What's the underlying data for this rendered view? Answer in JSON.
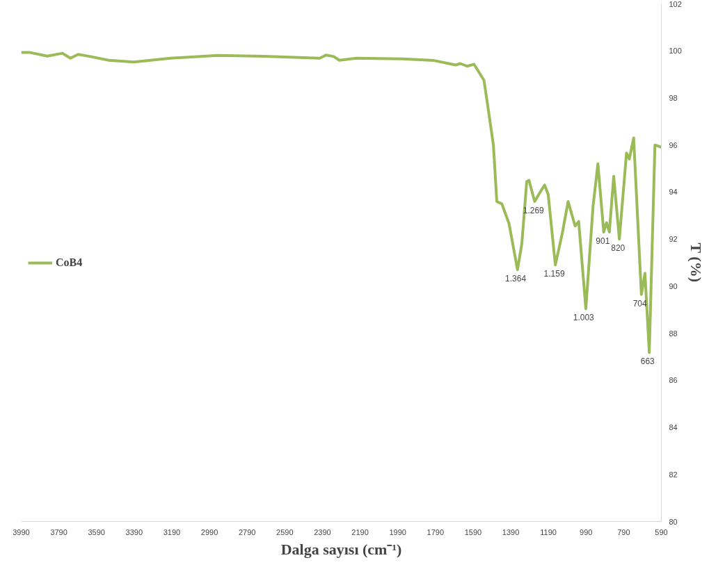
{
  "chart_data": {
    "type": "line",
    "xlabel": "Dalga sayısı (cm⁻¹)",
    "ylabel": "T (%)",
    "x": [
      3990,
      3942,
      3852,
      3771,
      3729,
      3687,
      3623,
      3525,
      3392,
      3196,
      2946,
      2700,
      2405,
      2371,
      2330,
      2300,
      2209,
      1963,
      1797,
      1683,
      1657,
      1622,
      1585,
      1532,
      1509,
      1482,
      1464,
      1437,
      1399,
      1354,
      1331,
      1305,
      1293,
      1263,
      1237,
      1210,
      1191,
      1153,
      1116,
      1085,
      1048,
      1029,
      991,
      953,
      927,
      896,
      881,
      866,
      843,
      813,
      775,
      760,
      737,
      696,
      677,
      654,
      624,
      612,
      590
    ],
    "series": [
      {
        "name": "CoB4",
        "color": "#9bbb59",
        "values": [
          99.93,
          99.93,
          99.78,
          99.9,
          99.69,
          99.85,
          99.76,
          99.6,
          99.53,
          99.69,
          99.81,
          99.77,
          99.69,
          99.82,
          99.76,
          99.6,
          99.69,
          99.66,
          99.59,
          99.4,
          99.46,
          99.35,
          99.43,
          98.75,
          97.5,
          96.0,
          93.6,
          93.5,
          92.66,
          90.7,
          91.8,
          94.45,
          94.5,
          93.6,
          93.95,
          94.3,
          93.9,
          90.9,
          92.25,
          93.6,
          92.56,
          92.75,
          89.04,
          93.37,
          95.2,
          92.3,
          92.7,
          92.3,
          94.67,
          92.0,
          95.66,
          95.4,
          96.3,
          89.65,
          90.55,
          87.18,
          96.0,
          95.97,
          95.9
        ]
      }
    ],
    "xlim": [
      3990,
      590
    ],
    "xticks": [
      3990,
      3790,
      3590,
      3390,
      3190,
      2990,
      2790,
      2590,
      2390,
      2190,
      1990,
      1790,
      1590,
      1390,
      1190,
      990,
      790,
      590
    ],
    "ylim": [
      80,
      102
    ],
    "yticks": [
      80,
      82,
      84,
      86,
      88,
      90,
      92,
      94,
      96,
      98,
      100,
      102
    ],
    "annotations": [
      {
        "text": "1.364",
        "x": 1364,
        "y": 90.7
      },
      {
        "text": "1.269",
        "x": 1269,
        "y": 93.6
      },
      {
        "text": "1.159",
        "x": 1159,
        "y": 90.9
      },
      {
        "text": "1.003",
        "x": 1003,
        "y": 89.04
      },
      {
        "text": "901",
        "x": 901,
        "y": 92.3
      },
      {
        "text": "820",
        "x": 820,
        "y": 92.0
      },
      {
        "text": "704",
        "x": 704,
        "y": 89.65
      },
      {
        "text": "663",
        "x": 663,
        "y": 87.18
      }
    ],
    "grid": false,
    "legend": "left",
    "marker": "none",
    "line_style": "solid"
  }
}
